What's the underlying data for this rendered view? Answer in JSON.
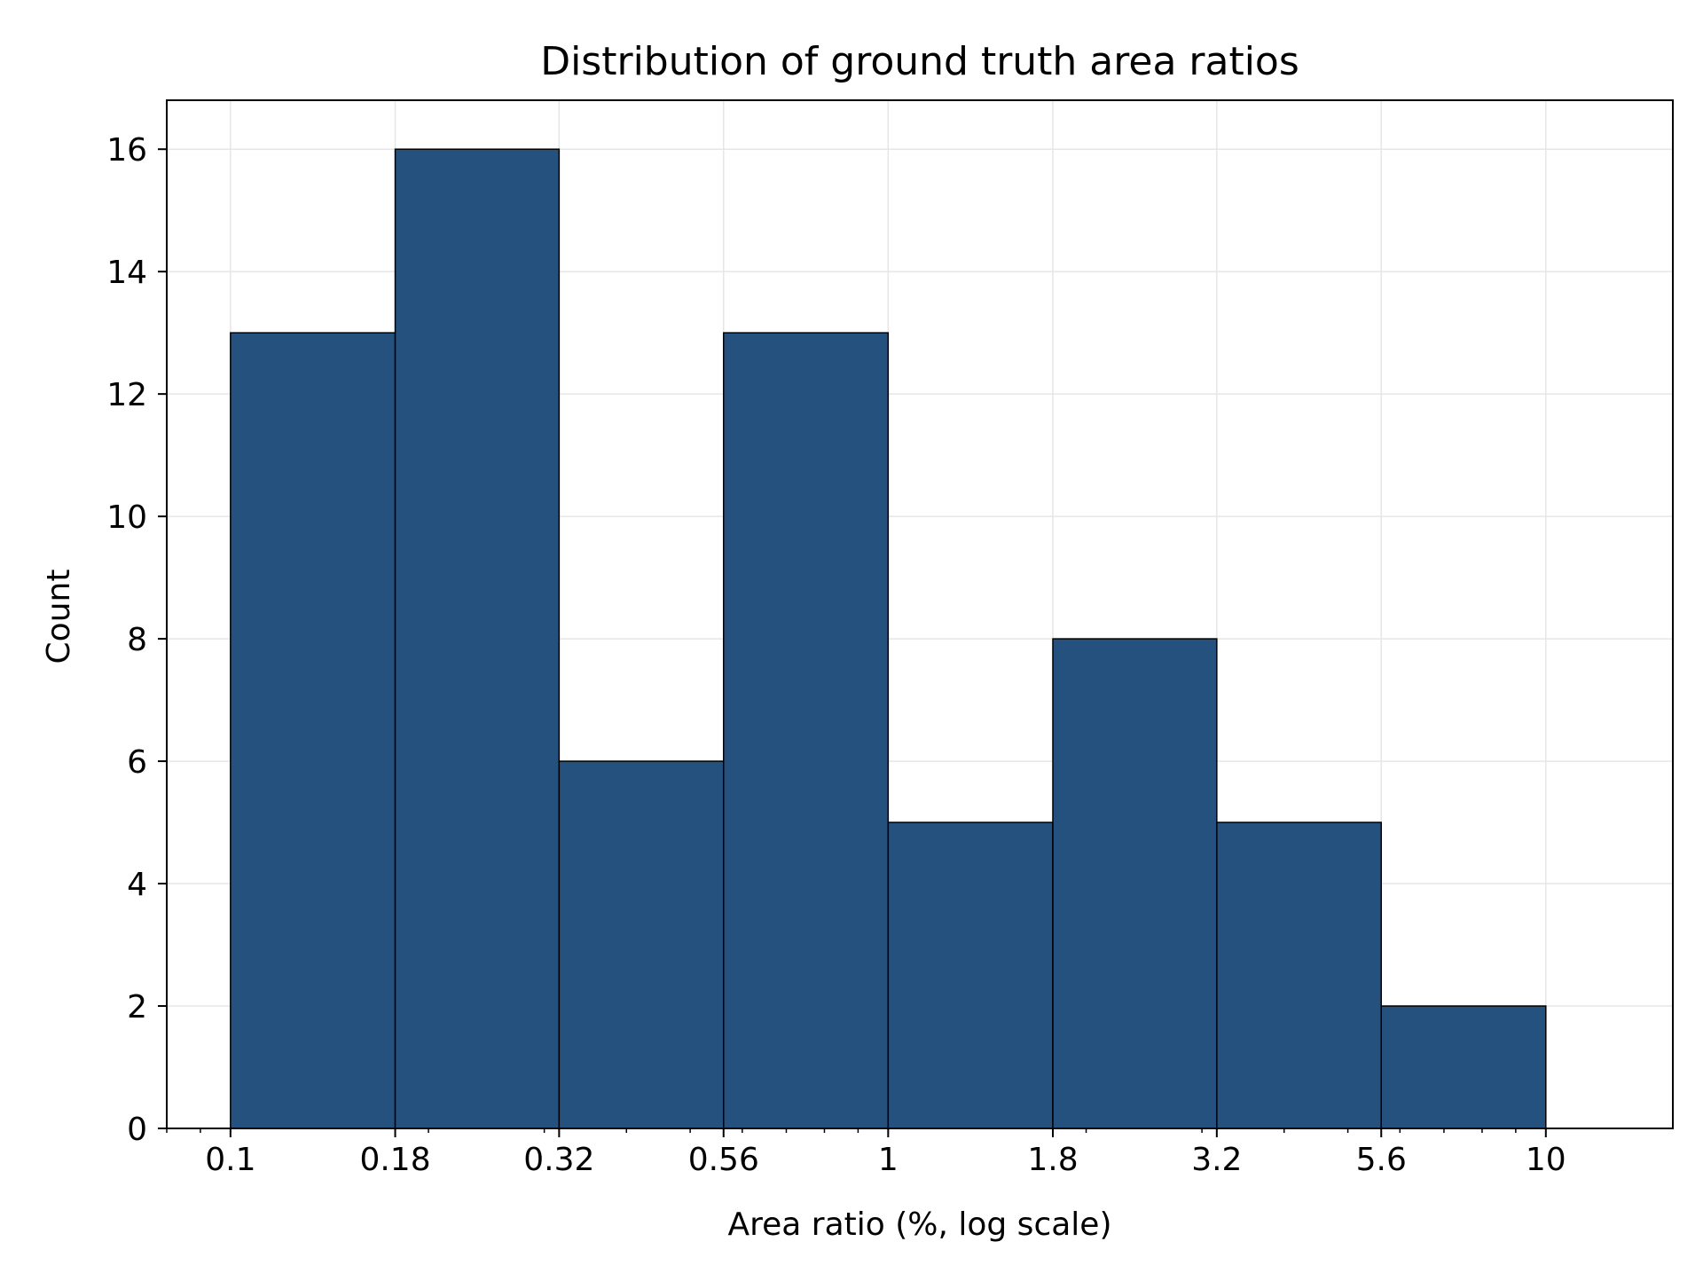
{
  "chart_data": {
    "type": "bar",
    "title": "Distribution of ground truth area ratios",
    "xlabel": "Area ratio (%, log scale)",
    "ylabel": "Count",
    "x_scale": "log",
    "bin_edges": [
      0.1,
      0.178,
      0.316,
      0.562,
      1,
      1.78,
      3.16,
      5.62,
      10
    ],
    "values": [
      13,
      16,
      6,
      13,
      5,
      8,
      5,
      2
    ],
    "xlim": [
      0.08,
      15.6
    ],
    "ylim": [
      0,
      16.8
    ],
    "x_ticks": [
      0.1,
      0.178,
      0.316,
      0.562,
      1,
      1.78,
      3.16,
      5.62,
      10
    ],
    "x_tick_labels": [
      "0.1",
      "0.18",
      "0.32",
      "0.56",
      "1",
      "1.8",
      "3.2",
      "5.6",
      "10"
    ],
    "y_ticks": [
      0,
      2,
      4,
      6,
      8,
      10,
      12,
      14,
      16
    ],
    "y_tick_labels": [
      "0",
      "2",
      "4",
      "6",
      "8",
      "10",
      "12",
      "14",
      "16"
    ],
    "grid": true,
    "colors": {
      "bar": "#25517f",
      "edge": "#000000",
      "grid": "#e6e6e6"
    }
  }
}
